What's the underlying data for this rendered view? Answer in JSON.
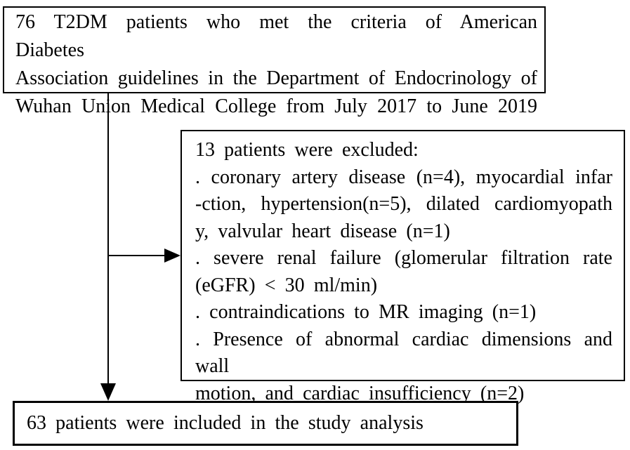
{
  "diagram": {
    "top_box": {
      "lines": [
        "76 T2DM patients who met the criteria of American Diabetes",
        "Association guidelines in the Department of Endocrinology of",
        "Wuhan Union Medical College from July 2017 to June 2019"
      ]
    },
    "exclusion_box": {
      "lines": [
        "13 patients were excluded:",
        ". coronary artery disease (n=4), myocardial infar",
        "-ction, hypertension(n=5), dilated cardiomyopath",
        "y, valvular heart disease (n=1)",
        ". severe renal failure (glomerular filtration rate",
        "(eGFR) < 30 ml/min)",
        ". contraindications to MR imaging (n=1)",
        ". Presence of abnormal cardiac dimensions and wall",
        "motion, and cardiac insufficiency (n=2)"
      ]
    },
    "bottom_box": {
      "text": "63 patients were included in the study analysis"
    },
    "colors": {
      "border": "#000000",
      "text": "#000000",
      "background": "#ffffff"
    }
  }
}
